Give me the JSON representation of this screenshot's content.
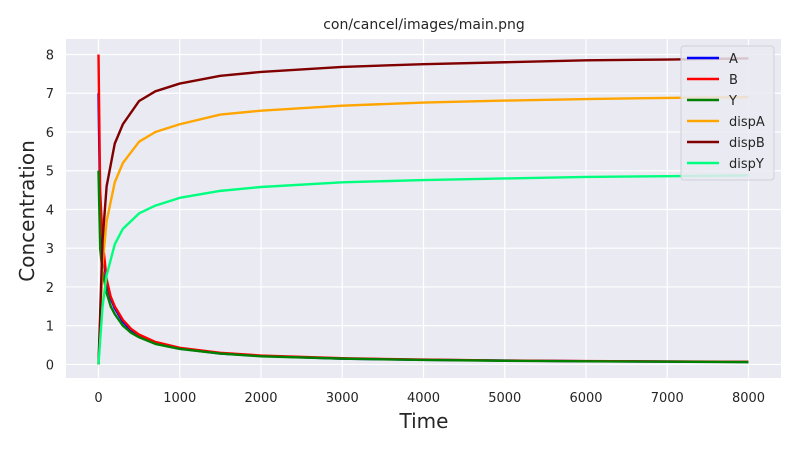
{
  "chart_data": {
    "type": "line",
    "title": "con/cancel/images/main.png",
    "xlabel": "Time",
    "ylabel": "Concentration",
    "xlim": [
      -400,
      8400
    ],
    "ylim": [
      -0.35,
      8.4
    ],
    "xticks": [
      0,
      1000,
      2000,
      3000,
      4000,
      5000,
      6000,
      7000,
      8000
    ],
    "yticks": [
      0,
      1,
      2,
      3,
      4,
      5,
      6,
      7,
      8
    ],
    "grid": true,
    "legend_position": "top-right",
    "background": "#eaeaf2",
    "series": [
      {
        "name": "A",
        "color": "#0000ff",
        "x": [
          0,
          20,
          50,
          100,
          150,
          200,
          300,
          400,
          500,
          700,
          1000,
          1500,
          2000,
          3000,
          4000,
          5000,
          6000,
          7000,
          8000
        ],
        "y": [
          7.0,
          4.0,
          3.0,
          2.1,
          1.7,
          1.45,
          1.1,
          0.88,
          0.74,
          0.56,
          0.41,
          0.28,
          0.22,
          0.15,
          0.12,
          0.1,
          0.085,
          0.075,
          0.065
        ]
      },
      {
        "name": "B",
        "color": "#ff0000",
        "x": [
          0,
          20,
          50,
          100,
          150,
          200,
          300,
          400,
          500,
          700,
          1000,
          1500,
          2000,
          3000,
          4000,
          5000,
          6000,
          7000,
          8000
        ],
        "y": [
          8.0,
          4.5,
          3.2,
          2.2,
          1.75,
          1.5,
          1.15,
          0.92,
          0.77,
          0.58,
          0.43,
          0.3,
          0.23,
          0.16,
          0.125,
          0.1,
          0.088,
          0.078,
          0.068
        ]
      },
      {
        "name": "Y",
        "color": "#008000",
        "x": [
          0,
          20,
          50,
          100,
          150,
          200,
          300,
          400,
          500,
          700,
          1000,
          1500,
          2000,
          3000,
          4000,
          5000,
          6000,
          7000,
          8000
        ],
        "y": [
          5.0,
          3.0,
          2.4,
          1.85,
          1.5,
          1.3,
          1.0,
          0.82,
          0.7,
          0.53,
          0.4,
          0.28,
          0.21,
          0.15,
          0.115,
          0.095,
          0.08,
          0.07,
          0.06
        ]
      },
      {
        "name": "dispA",
        "color": "#ffa500",
        "x": [
          0,
          50,
          100,
          200,
          300,
          500,
          700,
          1000,
          1500,
          2000,
          3000,
          4000,
          5000,
          6000,
          7000,
          8000
        ],
        "y": [
          0,
          2.6,
          3.7,
          4.7,
          5.2,
          5.75,
          6.0,
          6.2,
          6.45,
          6.55,
          6.68,
          6.76,
          6.81,
          6.85,
          6.88,
          6.9
        ]
      },
      {
        "name": "dispB",
        "color": "#800000",
        "x": [
          0,
          50,
          100,
          200,
          300,
          500,
          700,
          1000,
          1500,
          2000,
          3000,
          4000,
          5000,
          6000,
          7000,
          8000
        ],
        "y": [
          0,
          3.2,
          4.6,
          5.7,
          6.2,
          6.8,
          7.05,
          7.25,
          7.45,
          7.55,
          7.68,
          7.75,
          7.8,
          7.85,
          7.87,
          7.9
        ]
      },
      {
        "name": "dispY",
        "color": "#00ff7f",
        "x": [
          0,
          50,
          100,
          200,
          300,
          500,
          700,
          1000,
          1500,
          2000,
          3000,
          4000,
          5000,
          6000,
          7000,
          8000
        ],
        "y": [
          0,
          1.5,
          2.3,
          3.1,
          3.5,
          3.9,
          4.1,
          4.3,
          4.48,
          4.58,
          4.7,
          4.76,
          4.8,
          4.84,
          4.86,
          4.88
        ]
      }
    ]
  }
}
